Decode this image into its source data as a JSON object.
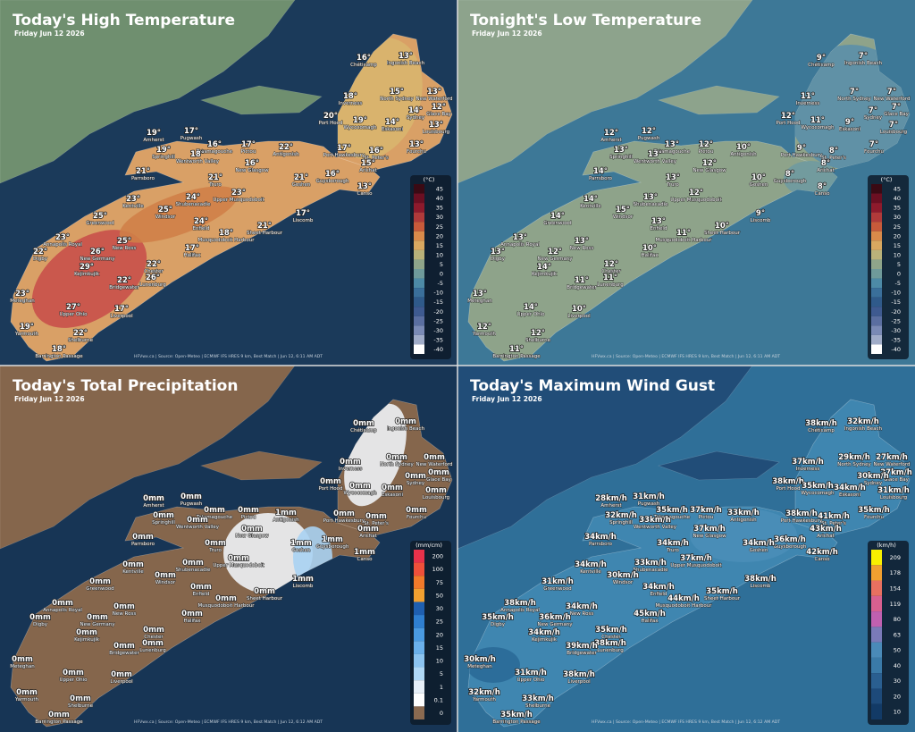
{
  "places": [
    "Chéticamp",
    "Ingonish Beach",
    "Inverness",
    "North Sydney",
    "New Waterford",
    "Glace Bay",
    "Sydney",
    "Louisbourg",
    "Port Hood",
    "Wycocomagh",
    "Eskasoni",
    "Port Hawkesbury",
    "St. Peter's",
    "Arichat",
    "Guysborough",
    "Canso",
    "Fourchu",
    "Amherst",
    "Pugwash",
    "Tatamagouche",
    "Pictou",
    "Springhill",
    "Wentworth Valley",
    "Antigonish",
    "New Glasgow",
    "Parrsboro",
    "Truro",
    "Goshen",
    "Kentville",
    "Shubenacadie",
    "Upper Musquodoboit",
    "Greenwood",
    "Windsor",
    "Enfield",
    "Liscomb",
    "Sheet Harbour",
    "Musquodoboit Harbour",
    "Annapolis Royal",
    "New Ross",
    "Halifax",
    "Digby",
    "New Germany",
    "Chester",
    "Kejimkujik",
    "Lunenburg",
    "Bridgewater",
    "Meteghan",
    "Upper Ohio",
    "Liverpool",
    "Yarmouth",
    "Shelburne",
    "Barrington Passage"
  ],
  "panels": [
    {
      "title": "Today's High Temperature",
      "subtitle": "Friday Jun 12 2026",
      "footer": "HFVwx.ca | Source: Open-Meteo | ECMWF IFS HRES 9 km, Best Match | Jun 12, 6:11 AM ADT",
      "legend": {
        "unit": "(°C)",
        "ticks": [
          45,
          40,
          35,
          30,
          25,
          20,
          15,
          10,
          5,
          0,
          -5,
          -10,
          -15,
          -20,
          -25,
          -30,
          -35,
          -40
        ],
        "colors": [
          "#3a0a14",
          "#6b0f22",
          "#8e1a2c",
          "#b03a3a",
          "#c85a3a",
          "#d98a4a",
          "#d9a860",
          "#b9b27a",
          "#8fa58a",
          "#6f9a9a",
          "#4d8aa6",
          "#3a6f9a",
          "#2f5a8a",
          "#3e5a90",
          "#5a6ea0",
          "#7a8ab5",
          "#a0acc8",
          "#ffffff"
        ]
      },
      "values": [
        "16°",
        "13°",
        "18°",
        "15°",
        "13°",
        "12°",
        "14°",
        "13°",
        "20°",
        "19°",
        "14°",
        "17°",
        "16°",
        "15°",
        "16°",
        "13°",
        "13°",
        "19°",
        "17°",
        "16°",
        "17°",
        "19°",
        "18°",
        "22°",
        "16°",
        "21°",
        "21°",
        "21°",
        "23°",
        "24°",
        "23°",
        "25°",
        "25°",
        "24°",
        "17°",
        "21°",
        "18°",
        "23°",
        "25°",
        "17°",
        "22°",
        "26°",
        "22°",
        "29°",
        "26°",
        "22°",
        "23°",
        "27°",
        "17°",
        "19°",
        "22°",
        "18°"
      ]
    },
    {
      "title": "Tonight's Low Temperature",
      "subtitle": "Friday Jun 12 2026",
      "footer": "HFVwx.ca | Source: Open-Meteo | ECMWF IFS HRES 9 km, Best Match | Jun 12, 6:11 AM ADT",
      "legend": {
        "unit": "(°C)",
        "ticks": [
          45,
          40,
          35,
          30,
          25,
          20,
          15,
          10,
          5,
          0,
          -5,
          -10,
          -15,
          -20,
          -25,
          -30,
          -35,
          -40
        ],
        "colors": [
          "#3a0a14",
          "#6b0f22",
          "#8e1a2c",
          "#b03a3a",
          "#c85a3a",
          "#d98a4a",
          "#d9a860",
          "#b9b27a",
          "#8fa58a",
          "#6f9a9a",
          "#4d8aa6",
          "#3a6f9a",
          "#2f5a8a",
          "#3e5a90",
          "#5a6ea0",
          "#7a8ab5",
          "#a0acc8",
          "#ffffff"
        ]
      },
      "values": [
        "9°",
        "7°",
        "11°",
        "7°",
        "7°",
        "7°",
        "7°",
        "7°",
        "12°",
        "11°",
        "9°",
        "9°",
        "8°",
        "8°",
        "8°",
        "8°",
        "7°",
        "12°",
        "12°",
        "13°",
        "12°",
        "13°",
        "13°",
        "10°",
        "12°",
        "14°",
        "13°",
        "10°",
        "14°",
        "13°",
        "12°",
        "14°",
        "15°",
        "13°",
        "9°",
        "10°",
        "11°",
        "13°",
        "13°",
        "10°",
        "13°",
        "12°",
        "12°",
        "14°",
        "11°",
        "11°",
        "13°",
        "14°",
        "10°",
        "12°",
        "12°",
        "11°"
      ]
    },
    {
      "title": "Today's Total Precipitation",
      "subtitle": "Friday Jun 12 2026",
      "footer": "HFVwx.ca | Source: Open-Meteo | ECMWF IFS HRES 9 km, Best Match | Jun 12, 6:12 AM ADT",
      "legend": {
        "unit": "(mm/cm)",
        "ticks": [
          200,
          100,
          75,
          50,
          30,
          25,
          20,
          15,
          10,
          5,
          1,
          0.1,
          0
        ],
        "colors": [
          "#e8324a",
          "#f0503a",
          "#f27a2a",
          "#f2a030",
          "#1f5fb0",
          "#2f7fd0",
          "#4a9ae0",
          "#6ab0ea",
          "#8cc4f0",
          "#b0d8f5",
          "#e8f0f8",
          "#ffffff",
          "#8a6a50"
        ]
      },
      "values": [
        "0mm",
        "0mm",
        "0mm",
        "0mm",
        "0mm",
        "0mm",
        "0mm",
        "0mm",
        "0mm",
        "0mm",
        "0mm",
        "0mm",
        "0mm",
        "0mm",
        "1mm",
        "1mm",
        "0mm",
        "0mm",
        "0mm",
        "0mm",
        "0mm",
        "0mm",
        "0mm",
        "1mm",
        "0mm",
        "0mm",
        "0mm",
        "1mm",
        "0mm",
        "0mm",
        "0mm",
        "0mm",
        "0mm",
        "0mm",
        "1mm",
        "0mm",
        "0mm",
        "0mm",
        "0mm",
        "0mm",
        "0mm",
        "0mm",
        "0mm",
        "0mm",
        "0mm",
        "0mm",
        "0mm",
        "0mm",
        "0mm",
        "0mm",
        "0mm",
        "0mm"
      ]
    },
    {
      "title": "Today's Maximum Wind Gust",
      "subtitle": "Friday Jun 12 2026",
      "footer": "HFVwx.ca | Source: Open-Meteo | ECMWF IFS HRES 9 km, Best Match | Jun 12, 6:12 AM ADT",
      "legend": {
        "unit": "(km/h)",
        "ticks": [
          209,
          178,
          154,
          119,
          80,
          63,
          50,
          40,
          30,
          20,
          10
        ],
        "colors": [
          "#f8f000",
          "#f0a030",
          "#e87060",
          "#d86090",
          "#c060b0",
          "#7a7ab8",
          "#4a8ab8",
          "#3a7aa8",
          "#2a5f90",
          "#1d4a7a",
          "#123a66"
        ]
      },
      "values": [
        "38km/h",
        "32km/h",
        "37km/h",
        "29km/h",
        "27km/h",
        "27km/h",
        "30km/h",
        "31km/h",
        "38km/h",
        "35km/h",
        "34km/h",
        "38km/h",
        "41km/h",
        "43km/h",
        "36km/h",
        "42km/h",
        "35km/h",
        "28km/h",
        "31km/h",
        "35km/h",
        "37km/h",
        "32km/h",
        "33km/h",
        "33km/h",
        "37km/h",
        "34km/h",
        "34km/h",
        "34km/h",
        "34km/h",
        "33km/h",
        "37km/h",
        "31km/h",
        "30km/h",
        "34km/h",
        "38km/h",
        "35km/h",
        "44km/h",
        "38km/h",
        "34km/h",
        "45km/h",
        "35km/h",
        "36km/h",
        "35km/h",
        "34km/h",
        "38km/h",
        "39km/h",
        "30km/h",
        "31km/h",
        "38km/h",
        "32km/h",
        "33km/h",
        "35km/h"
      ]
    }
  ]
}
